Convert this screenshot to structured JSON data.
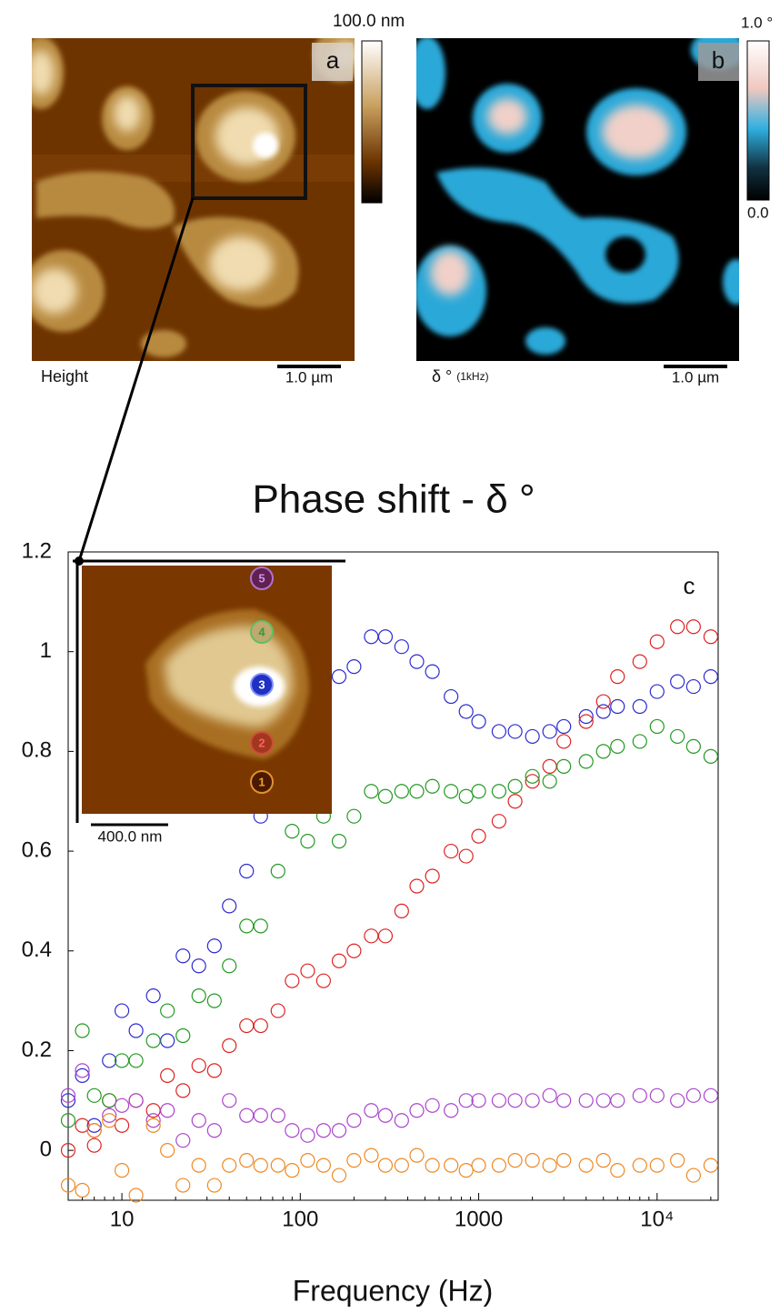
{
  "panels": {
    "a": {
      "letter": "a",
      "label": "Height",
      "scale": "1.0 µm",
      "colorbar_max": "100.0 nm"
    },
    "b": {
      "letter": "b",
      "label": "δ °",
      "label_sub": "(1kHz)",
      "scale": "1.0 µm",
      "colorbar_max": "1.0 °",
      "colorbar_min": "0.0"
    },
    "inset": {
      "scale": "400.0 nm",
      "points": [
        "1",
        "2",
        "3",
        "4",
        "5"
      ]
    }
  },
  "chart_data": {
    "type": "scatter",
    "title": "Phase shift - δ °",
    "panel_label": "c",
    "x_label": "Frequency (Hz)",
    "log_x": true,
    "xlim": [
      5,
      22000
    ],
    "ylim": [
      -0.1,
      1.2
    ],
    "xticks": [
      10,
      100,
      1000,
      {
        "value": 10000,
        "label": "10⁴"
      }
    ],
    "yticks": [
      0,
      0.2,
      0.4,
      0.6,
      0.8,
      1,
      1.2
    ],
    "x": [
      5,
      6,
      7,
      8.5,
      10,
      12,
      15,
      18,
      22,
      27,
      33,
      40,
      50,
      60,
      75,
      90,
      110,
      135,
      165,
      200,
      250,
      300,
      370,
      450,
      550,
      700,
      850,
      1000,
      1300,
      1600,
      2000,
      2500,
      3000,
      4000,
      5000,
      6000,
      8000,
      10000,
      13000,
      16000,
      20000
    ],
    "series": [
      {
        "color": "#2b2bd0",
        "values": [
          0.1,
          0.15,
          0.05,
          0.18,
          0.28,
          0.24,
          0.31,
          0.22,
          0.39,
          0.37,
          0.41,
          0.49,
          0.56,
          0.67,
          0.75,
          0.8,
          0.85,
          0.9,
          0.95,
          0.97,
          1.03,
          1.03,
          1.01,
          0.98,
          0.96,
          0.91,
          0.88,
          0.86,
          0.84,
          0.84,
          0.83,
          0.84,
          0.85,
          0.87,
          0.88,
          0.89,
          0.89,
          0.92,
          0.94,
          0.93,
          0.95
        ]
      },
      {
        "color": "#dd2222",
        "values": [
          0,
          0.05,
          0.01,
          0.1,
          0.05,
          0.1,
          0.08,
          0.15,
          0.12,
          0.17,
          0.16,
          0.21,
          0.25,
          0.25,
          0.28,
          0.34,
          0.36,
          0.34,
          0.38,
          0.4,
          0.43,
          0.43,
          0.48,
          0.53,
          0.55,
          0.6,
          0.59,
          0.63,
          0.66,
          0.7,
          0.74,
          0.77,
          0.82,
          0.86,
          0.9,
          0.95,
          0.98,
          1.02,
          1.05,
          1.05,
          1.03
        ]
      },
      {
        "color": "#229922",
        "values": [
          0.06,
          0.24,
          0.11,
          0.1,
          0.18,
          0.18,
          0.22,
          0.28,
          0.23,
          0.31,
          0.3,
          0.37,
          0.45,
          0.45,
          0.56,
          0.64,
          0.62,
          0.67,
          0.62,
          0.67,
          0.72,
          0.71,
          0.72,
          0.72,
          0.73,
          0.72,
          0.71,
          0.72,
          0.72,
          0.73,
          0.75,
          0.74,
          0.77,
          0.78,
          0.8,
          0.81,
          0.82,
          0.85,
          0.83,
          0.81,
          0.79
        ]
      },
      {
        "color": "#aa44cc",
        "values": [
          0.11,
          0.16,
          0.04,
          0.07,
          0.09,
          0.1,
          0.06,
          0.08,
          0.02,
          0.06,
          0.04,
          0.1,
          0.07,
          0.07,
          0.07,
          0.04,
          0.03,
          0.04,
          0.04,
          0.06,
          0.08,
          0.07,
          0.06,
          0.08,
          0.09,
          0.08,
          0.1,
          0.1,
          0.1,
          0.1,
          0.1,
          0.11,
          0.1,
          0.1,
          0.1,
          0.1,
          0.11,
          0.11,
          0.1,
          0.11,
          0.11
        ]
      },
      {
        "color": "#ee8822",
        "values": [
          -0.07,
          -0.08,
          0.04,
          0.06,
          -0.04,
          -0.09,
          0.05,
          0.0,
          -0.07,
          -0.03,
          -0.07,
          -0.03,
          -0.02,
          -0.03,
          -0.03,
          -0.04,
          -0.02,
          -0.03,
          -0.05,
          -0.02,
          -0.01,
          -0.03,
          -0.03,
          -0.01,
          -0.03,
          -0.03,
          -0.04,
          -0.03,
          -0.03,
          -0.02,
          -0.02,
          -0.03,
          -0.02,
          -0.03,
          -0.02,
          -0.04,
          -0.03,
          -0.03,
          -0.02,
          -0.05,
          -0.03
        ]
      }
    ]
  }
}
